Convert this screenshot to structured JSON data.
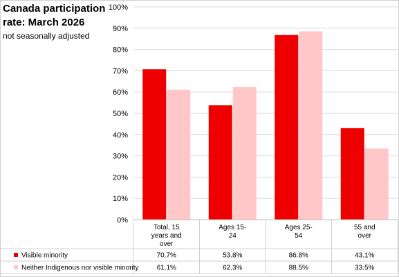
{
  "title": "Canada participation rate: March 2026",
  "subtitle": "not seasonally adjusted",
  "chart_data": {
    "type": "bar",
    "categories": [
      "Total, 15 years and over",
      "Ages 15-24",
      "Ages 25-54",
      "55 and over"
    ],
    "category_lines": [
      [
        "Total, 15",
        "years and",
        "over"
      ],
      [
        "Ages 15-",
        "24"
      ],
      [
        "Ages 25-",
        "54"
      ],
      [
        "55 and",
        "over"
      ]
    ],
    "series": [
      {
        "name": "Visible minority",
        "values": [
          70.7,
          53.8,
          86.8,
          43.1
        ],
        "labels": [
          "70.7%",
          "53.8%",
          "86.8%",
          "43.1%"
        ],
        "color": "#ee0000"
      },
      {
        "name": "Neither Indigenous nor visible minority",
        "values": [
          61.1,
          62.3,
          88.5,
          33.5
        ],
        "labels": [
          "61.1%",
          "62.3%",
          "88.5%",
          "33.5%"
        ],
        "color": "#ffc7c7"
      }
    ],
    "yticks": [
      "0%",
      "10%",
      "20%",
      "30%",
      "40%",
      "50%",
      "60%",
      "70%",
      "80%",
      "90%",
      "100%"
    ],
    "ylim": [
      0,
      100
    ],
    "grid": true,
    "data_table": true,
    "xlabel": "",
    "ylabel": ""
  }
}
